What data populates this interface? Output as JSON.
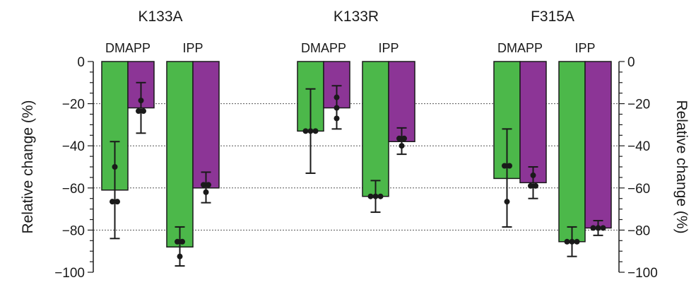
{
  "chart_data": {
    "type": "bar",
    "ylabel_left": "Relative change (%)",
    "ylabel_right": "Relative change (%)",
    "ylim": [
      -100,
      0
    ],
    "yticks": [
      0,
      -20,
      -40,
      -60,
      -80,
      -100
    ],
    "grid": "dotted horizontal lines at -20, -40, -60, -80",
    "legend": "none",
    "colors": {
      "green": "#4cb84a",
      "purple": "#8c3596",
      "outline": "#1a1a1a"
    },
    "groups": [
      {
        "title": "K133A",
        "substrates": [
          {
            "label": "DMAPP",
            "bars": [
              {
                "color": "green",
                "value": -61,
                "err_low": -84,
                "err_high": -38,
                "points": [
                  -50,
                  -66.5,
                  -66.5
                ]
              },
              {
                "color": "purple",
                "value": -22,
                "err_low": -34,
                "err_high": -10,
                "points": [
                  -18.5,
                  -23.5,
                  -23.5
                ]
              }
            ]
          },
          {
            "label": "IPP",
            "bars": [
              {
                "color": "green",
                "value": -88,
                "err_low": -97,
                "err_high": -78.5,
                "points": [
                  -85.5,
                  -85.5,
                  -92.5
                ]
              },
              {
                "color": "purple",
                "value": -60,
                "err_low": -67,
                "err_high": -52.5,
                "points": [
                  -58.5,
                  -58.5,
                  -62
                ]
              }
            ]
          }
        ]
      },
      {
        "title": "K133R",
        "substrates": [
          {
            "label": "DMAPP",
            "bars": [
              {
                "color": "green",
                "value": -33,
                "err_low": -53,
                "err_high": -13,
                "points": [
                  -33,
                  -33,
                  -33
                ]
              },
              {
                "color": "purple",
                "value": -22,
                "err_low": -32,
                "err_high": -11.5,
                "points": [
                  -17,
                  -22,
                  -27
                ]
              }
            ]
          },
          {
            "label": "IPP",
            "bars": [
              {
                "color": "green",
                "value": -64,
                "err_low": -71.5,
                "err_high": -56.5,
                "points": [
                  -64,
                  -64,
                  -64
                ]
              },
              {
                "color": "purple",
                "value": -38,
                "err_low": -44,
                "err_high": -31.5,
                "points": [
                  -36.5,
                  -36.5,
                  -40
                ]
              }
            ]
          }
        ]
      },
      {
        "title": "F315A",
        "substrates": [
          {
            "label": "DMAPP",
            "bars": [
              {
                "color": "green",
                "value": -55.5,
                "err_low": -78.5,
                "err_high": -32,
                "points": [
                  -49.5,
                  -49.5,
                  -66.5
                ]
              },
              {
                "color": "purple",
                "value": -57.5,
                "err_low": -65,
                "err_high": -50,
                "points": [
                  -54,
                  -59,
                  -59
                ]
              }
            ]
          },
          {
            "label": "IPP",
            "bars": [
              {
                "color": "green",
                "value": -85.5,
                "err_low": -92.5,
                "err_high": -78.5,
                "points": [
                  -85.5,
                  -85.5,
                  -85.5
                ]
              },
              {
                "color": "purple",
                "value": -79,
                "err_low": -82.5,
                "err_high": -75.5,
                "points": [
                  -79,
                  -79,
                  -79
                ]
              }
            ]
          }
        ]
      }
    ]
  }
}
